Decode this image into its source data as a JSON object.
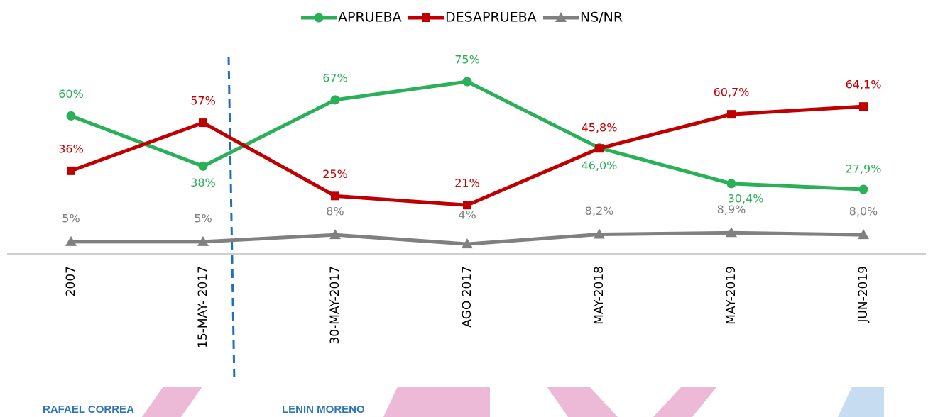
{
  "chart_data": {
    "type": "line",
    "categories": [
      "2007",
      "15-MAY- 2017",
      "30-MAY-2017",
      "AGO 2017",
      "MAY-2018",
      "MAY-2019",
      "JUN-2019"
    ],
    "series": [
      {
        "name": "APRUEBA",
        "color": "#2bb05a",
        "marker": "circle",
        "values": [
          60,
          38,
          67,
          75,
          46.0,
          30.4,
          27.9
        ],
        "value_labels": [
          "60%",
          "38%",
          "67%",
          "75%",
          "46,0%",
          "30,4%",
          "27,9%"
        ]
      },
      {
        "name": "DESAPRUEBA",
        "color": "#c00000",
        "marker": "square",
        "values": [
          36,
          57,
          25,
          21,
          45.8,
          60.7,
          64.1
        ],
        "value_labels": [
          "36%",
          "57%",
          "25%",
          "21%",
          "45,8%",
          "60,7%",
          "64,1%"
        ]
      },
      {
        "name": "NS/NR",
        "color": "#808080",
        "marker": "triangle",
        "values": [
          5,
          5,
          8,
          4,
          8.2,
          8.9,
          8.0
        ],
        "value_labels": [
          "5%",
          "5%",
          "8%",
          "4%",
          "8,2%",
          "8,9%",
          "8,0%"
        ]
      }
    ],
    "legend": "top",
    "annotations": [
      "RAFAEL CORREA",
      "LENIN MORENO"
    ]
  }
}
